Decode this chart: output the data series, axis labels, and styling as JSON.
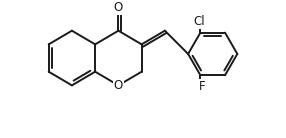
{
  "background_color": "#ffffff",
  "bond_color": "#1a1a1a",
  "line_width": 1.4,
  "figsize": [
    2.86,
    1.38
  ],
  "dpi": 100,
  "xlim": [
    0,
    10
  ],
  "ylim": [
    0,
    4.8
  ],
  "bl_pts": [
    [
      2.4,
      3.9
    ],
    [
      3.25,
      3.4
    ],
    [
      3.25,
      2.4
    ],
    [
      2.4,
      1.9
    ],
    [
      1.55,
      2.4
    ],
    [
      1.55,
      3.4
    ]
  ],
  "bl_doubles": [
    0,
    0,
    1,
    0,
    1,
    0
  ],
  "p_C8a": [
    3.25,
    3.4
  ],
  "p_C4a": [
    3.25,
    2.4
  ],
  "p_C4": [
    4.1,
    3.9
  ],
  "p_O_carb": [
    4.1,
    4.75
  ],
  "p_C3": [
    4.95,
    3.4
  ],
  "p_C2": [
    4.95,
    2.4
  ],
  "p_O1": [
    4.1,
    1.9
  ],
  "p_exoCH": [
    5.8,
    3.9
  ],
  "cx_r": 7.55,
  "cy_r": 3.05,
  "r_r": 0.9,
  "br_doubles": [
    0,
    1,
    0,
    1,
    0,
    1
  ],
  "O1_label": "O",
  "O_carb_label": "O",
  "Cl_label": "Cl",
  "F_label": "F",
  "label_fontsize": 8.5
}
